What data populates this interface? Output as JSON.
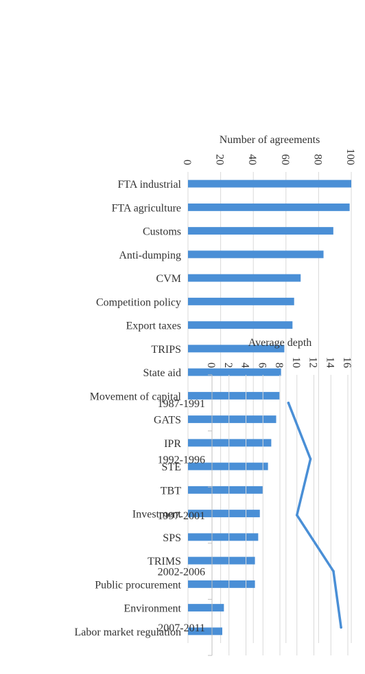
{
  "chart_data": [
    {
      "type": "bar",
      "orientation": "rotated-90-clockwise",
      "ylabel": "Number of agreements",
      "xlabel": "",
      "ylim": [
        0,
        100
      ],
      "yticks": [
        0,
        20,
        40,
        60,
        80,
        100
      ],
      "grid": true,
      "color": "#4a8fd6",
      "categories": [
        "FTA industrial",
        "FTA agriculture",
        "Customs",
        "Anti-dumping",
        "CVM",
        "Competition policy",
        "Export taxes",
        "TRIPS",
        "State aid",
        "Movement of capital",
        "GATS",
        "IPR",
        "STE",
        "TBT",
        "Investment",
        "SPS",
        "TRIMS",
        "Public procurement",
        "Environment",
        "Labor market regulation"
      ],
      "values": [
        100,
        99,
        89,
        83,
        69,
        65,
        64,
        59,
        57,
        56,
        54,
        51,
        49,
        46,
        44,
        43,
        41,
        41,
        22,
        21
      ]
    },
    {
      "type": "line",
      "orientation": "rotated-90-clockwise",
      "ylabel": "Average depth",
      "xlabel": "",
      "ylim": [
        0,
        16
      ],
      "yticks": [
        0,
        2,
        4,
        6,
        8,
        10,
        12,
        14,
        16
      ],
      "grid": true,
      "color": "#4a8fd6",
      "categories": [
        "1987-1991",
        "1992-1996",
        "1997-2001",
        "2002-2006",
        "2007-2011"
      ],
      "values": [
        9.0,
        11.6,
        10.0,
        14.3,
        15.2
      ]
    }
  ]
}
